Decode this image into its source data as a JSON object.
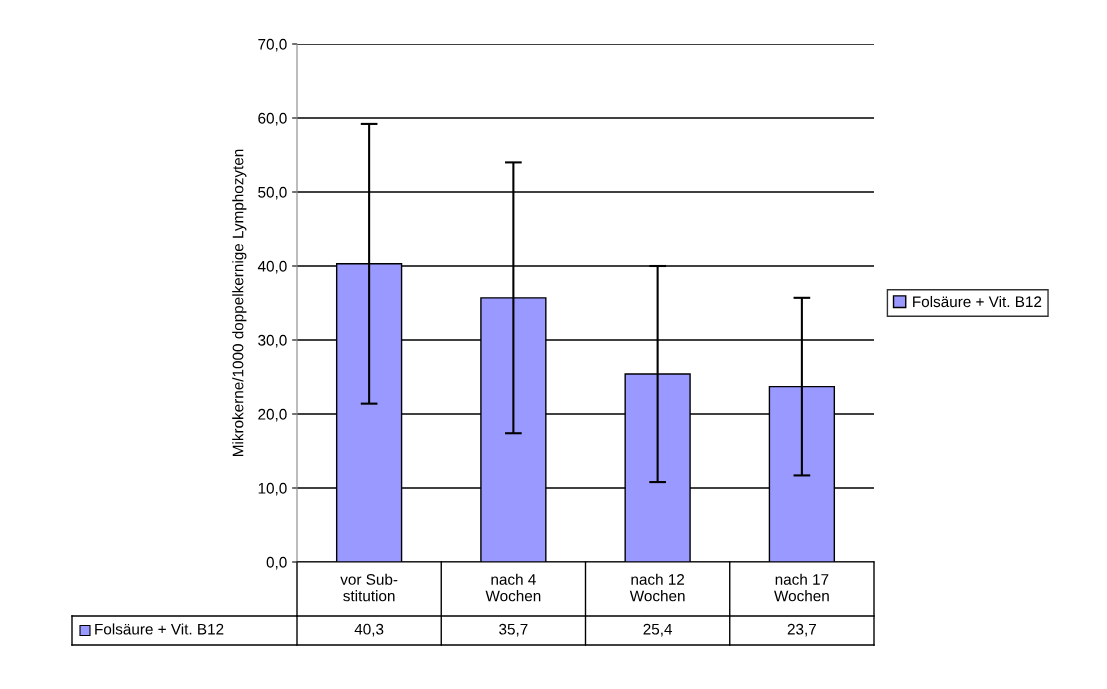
{
  "chart_data": {
    "type": "bar",
    "ylabel": "Mikrokerne/1000 doppelkernige Lymphozyten",
    "categories": [
      "vor Sub-\nstitution",
      "nach 4\nWochen",
      "nach 12\nWochen",
      "nach 17\nWochen"
    ],
    "series": [
      {
        "name": "Folsäure + Vit. B12",
        "color": "#9999ff",
        "values": [
          40.3,
          35.7,
          25.4,
          23.7
        ],
        "errors": [
          18.9,
          18.3,
          14.6,
          12.0
        ]
      }
    ],
    "ylim": [
      0,
      70
    ],
    "yticks": [
      {
        "value": 0,
        "label": "0,0"
      },
      {
        "value": 10,
        "label": "10,0"
      },
      {
        "value": 20,
        "label": "20,0"
      },
      {
        "value": 30,
        "label": "30,0"
      },
      {
        "value": 40,
        "label": "40,0"
      },
      {
        "value": 50,
        "label": "50,0"
      },
      {
        "value": 60,
        "label": "60,0"
      },
      {
        "value": 70,
        "label": "70,0"
      }
    ],
    "value_labels": [
      "40,3",
      "35,7",
      "25,4",
      "23,7"
    ],
    "grid": "y",
    "legend": "right"
  }
}
